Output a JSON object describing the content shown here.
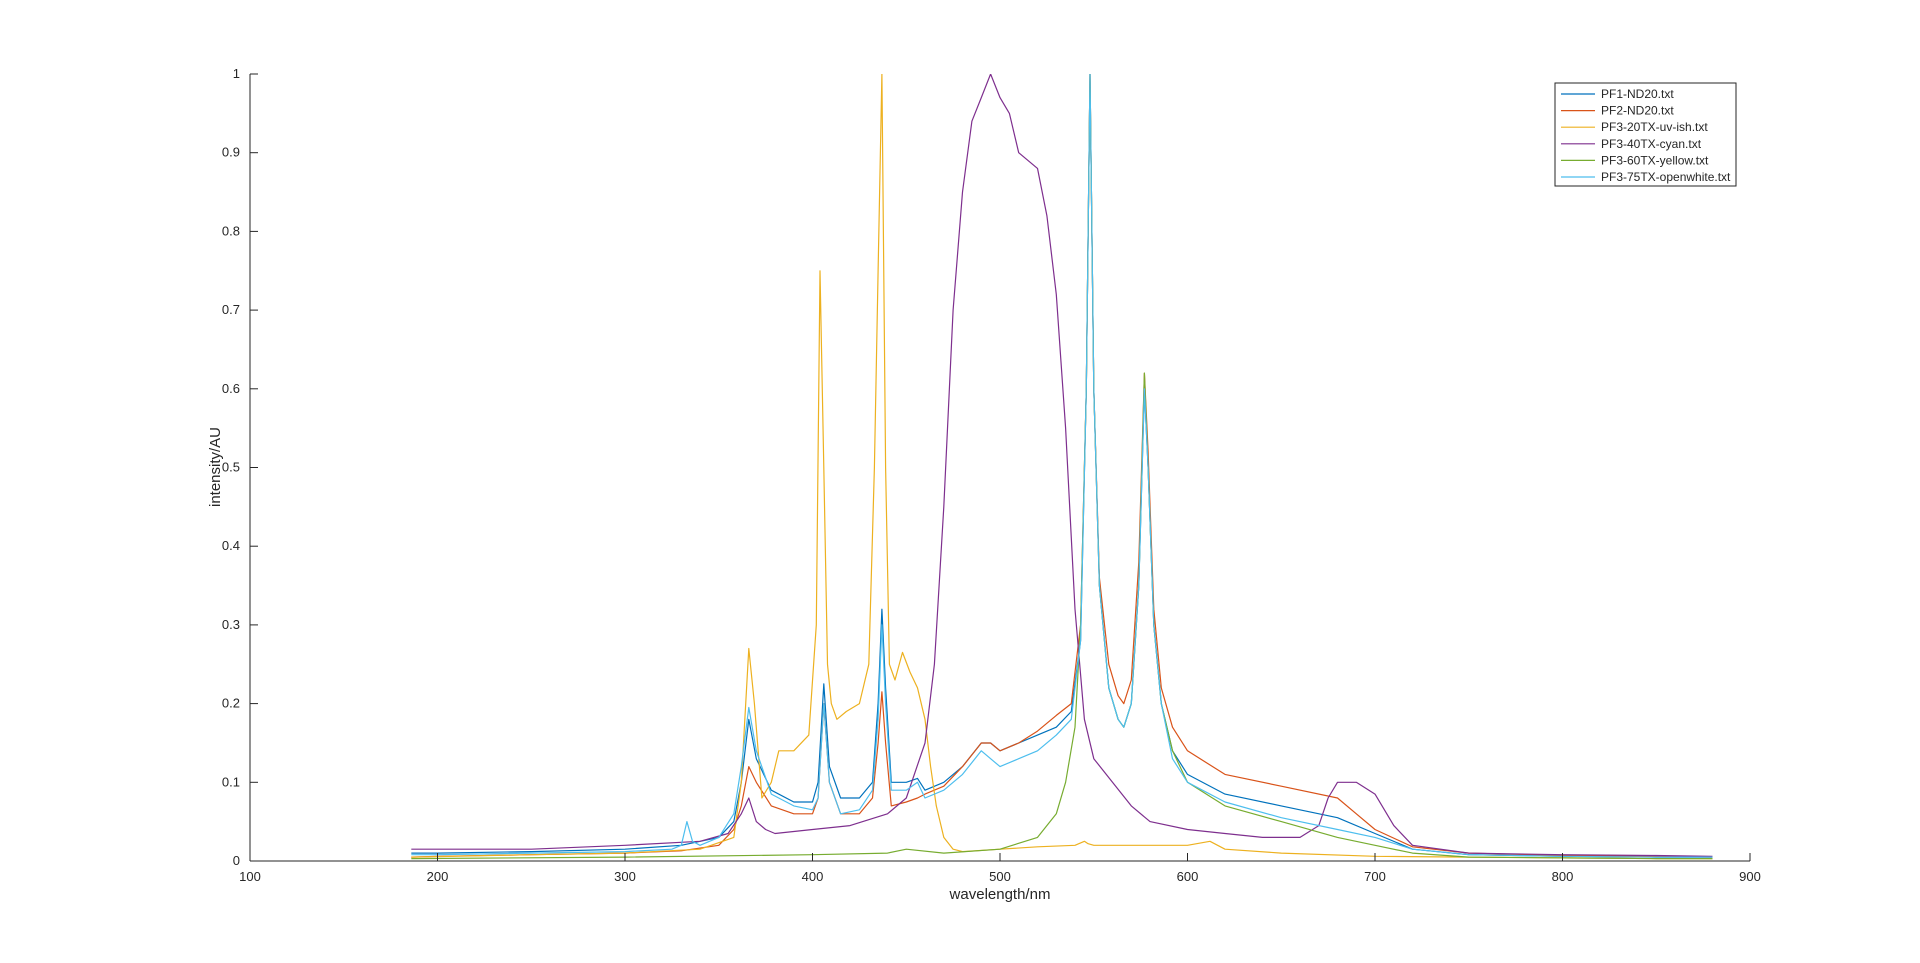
{
  "chart_data": {
    "type": "line",
    "xlabel": "wavelength/nm",
    "ylabel": "intensity/AU",
    "xlim": [
      100,
      900
    ],
    "ylim": [
      0,
      1
    ],
    "xticks": [
      "100",
      "200",
      "300",
      "400",
      "500",
      "600",
      "700",
      "800",
      "900"
    ],
    "yticks": [
      "0",
      "0.1",
      "0.2",
      "0.3",
      "0.4",
      "0.5",
      "0.6",
      "0.7",
      "0.8",
      "0.9",
      "1"
    ],
    "grid": false,
    "legend_position": "top-right",
    "series": [
      {
        "name": "PF1-ND20.txt",
        "color": "#0072BD",
        "x": [
          186,
          200,
          250,
          300,
          330,
          350,
          358,
          362,
          366,
          370,
          378,
          390,
          400,
          403,
          406,
          409,
          415,
          425,
          432,
          435,
          437,
          439,
          442,
          450,
          456,
          460,
          470,
          480,
          490,
          495,
          500,
          510,
          520,
          530,
          538,
          543,
          546,
          548,
          550,
          553,
          558,
          563,
          566,
          570,
          574,
          577,
          579,
          582,
          586,
          592,
          600,
          620,
          650,
          680,
          700,
          720,
          750,
          800,
          850,
          880
        ],
        "y": [
          0.01,
          0.01,
          0.012,
          0.015,
          0.02,
          0.03,
          0.05,
          0.1,
          0.18,
          0.13,
          0.09,
          0.075,
          0.075,
          0.1,
          0.225,
          0.12,
          0.08,
          0.08,
          0.1,
          0.2,
          0.32,
          0.22,
          0.1,
          0.1,
          0.105,
          0.09,
          0.1,
          0.12,
          0.15,
          0.15,
          0.14,
          0.15,
          0.16,
          0.17,
          0.19,
          0.28,
          0.6,
          1.0,
          0.6,
          0.35,
          0.22,
          0.18,
          0.17,
          0.2,
          0.35,
          0.6,
          0.5,
          0.3,
          0.2,
          0.14,
          0.11,
          0.085,
          0.07,
          0.055,
          0.035,
          0.015,
          0.008,
          0.006,
          0.005,
          0.005
        ]
      },
      {
        "name": "PF2-ND20.txt",
        "color": "#D95319",
        "x": [
          186,
          200,
          250,
          300,
          330,
          350,
          358,
          362,
          366,
          370,
          378,
          390,
          400,
          403,
          406,
          409,
          415,
          425,
          432,
          435,
          437,
          439,
          442,
          450,
          456,
          460,
          470,
          480,
          490,
          495,
          500,
          510,
          520,
          530,
          538,
          543,
          546,
          548,
          550,
          553,
          558,
          563,
          566,
          570,
          574,
          577,
          579,
          582,
          586,
          592,
          600,
          620,
          650,
          680,
          690,
          700,
          720,
          750,
          800,
          850,
          880
        ],
        "y": [
          0.005,
          0.006,
          0.008,
          0.01,
          0.013,
          0.02,
          0.04,
          0.07,
          0.12,
          0.1,
          0.07,
          0.06,
          0.06,
          0.08,
          0.2,
          0.1,
          0.06,
          0.06,
          0.08,
          0.15,
          0.215,
          0.15,
          0.07,
          0.075,
          0.08,
          0.085,
          0.095,
          0.12,
          0.15,
          0.15,
          0.14,
          0.15,
          0.165,
          0.185,
          0.2,
          0.3,
          0.6,
          1.0,
          0.6,
          0.36,
          0.25,
          0.21,
          0.2,
          0.23,
          0.38,
          0.62,
          0.52,
          0.32,
          0.22,
          0.17,
          0.14,
          0.11,
          0.095,
          0.08,
          0.06,
          0.04,
          0.018,
          0.01,
          0.007,
          0.006,
          0.005
        ]
      },
      {
        "name": "PF3-20TX-uv-ish.txt",
        "color": "#EDB120",
        "x": [
          186,
          250,
          300,
          340,
          358,
          362,
          366,
          369,
          373,
          378,
          382,
          390,
          398,
          402,
          404,
          406,
          408,
          410,
          413,
          418,
          425,
          430,
          433,
          435,
          437,
          439,
          441,
          444,
          448,
          452,
          456,
          460,
          463,
          466,
          470,
          475,
          480,
          500,
          520,
          540,
          545,
          547,
          550,
          560,
          580,
          600,
          612,
          620,
          650,
          700,
          750,
          800,
          850,
          880
        ],
        "y": [
          0.005,
          0.008,
          0.01,
          0.015,
          0.03,
          0.1,
          0.27,
          0.2,
          0.08,
          0.1,
          0.14,
          0.14,
          0.16,
          0.3,
          0.75,
          0.5,
          0.25,
          0.2,
          0.18,
          0.19,
          0.2,
          0.25,
          0.5,
          0.75,
          1.0,
          0.5,
          0.25,
          0.23,
          0.265,
          0.24,
          0.22,
          0.18,
          0.12,
          0.07,
          0.03,
          0.015,
          0.012,
          0.015,
          0.018,
          0.02,
          0.025,
          0.022,
          0.02,
          0.02,
          0.02,
          0.02,
          0.025,
          0.015,
          0.01,
          0.006,
          0.005,
          0.004,
          0.003,
          0.003
        ]
      },
      {
        "name": "PF3-40TX-cyan.txt",
        "color": "#7E2F8E",
        "x": [
          186,
          250,
          300,
          340,
          355,
          362,
          366,
          370,
          375,
          380,
          400,
          420,
          440,
          450,
          460,
          465,
          470,
          475,
          480,
          485,
          490,
          495,
          500,
          505,
          510,
          520,
          525,
          530,
          535,
          540,
          545,
          550,
          560,
          570,
          580,
          600,
          620,
          640,
          660,
          670,
          675,
          680,
          690,
          700,
          710,
          720,
          750,
          800,
          850,
          880
        ],
        "y": [
          0.015,
          0.015,
          0.02,
          0.025,
          0.035,
          0.06,
          0.08,
          0.05,
          0.04,
          0.035,
          0.04,
          0.045,
          0.06,
          0.08,
          0.15,
          0.25,
          0.45,
          0.7,
          0.85,
          0.94,
          0.97,
          1.0,
          0.97,
          0.95,
          0.9,
          0.88,
          0.82,
          0.72,
          0.55,
          0.32,
          0.18,
          0.13,
          0.1,
          0.07,
          0.05,
          0.04,
          0.035,
          0.03,
          0.03,
          0.045,
          0.08,
          0.1,
          0.1,
          0.085,
          0.045,
          0.02,
          0.01,
          0.008,
          0.007,
          0.006
        ]
      },
      {
        "name": "PF3-60TX-yellow.txt",
        "color": "#77AC30",
        "x": [
          186,
          300,
          400,
          440,
          450,
          470,
          500,
          520,
          530,
          535,
          540,
          543,
          546,
          548,
          550,
          553,
          558,
          563,
          566,
          570,
          574,
          577,
          579,
          582,
          586,
          592,
          600,
          620,
          650,
          680,
          700,
          720,
          750,
          800,
          850,
          880
        ],
        "y": [
          0.003,
          0.005,
          0.008,
          0.01,
          0.015,
          0.01,
          0.015,
          0.03,
          0.06,
          0.1,
          0.17,
          0.3,
          0.6,
          1.0,
          0.6,
          0.35,
          0.22,
          0.18,
          0.17,
          0.2,
          0.35,
          0.62,
          0.5,
          0.3,
          0.2,
          0.14,
          0.1,
          0.07,
          0.05,
          0.03,
          0.02,
          0.01,
          0.005,
          0.004,
          0.003,
          0.003
        ]
      },
      {
        "name": "PF3-75TX-openwhite.txt",
        "color": "#4DBEEE",
        "x": [
          186,
          200,
          250,
          300,
          325,
          330,
          333,
          336,
          340,
          350,
          358,
          362,
          366,
          370,
          378,
          390,
          400,
          403,
          406,
          409,
          415,
          425,
          432,
          435,
          437,
          439,
          442,
          450,
          456,
          460,
          470,
          480,
          490,
          495,
          500,
          510,
          520,
          530,
          538,
          543,
          546,
          548,
          550,
          553,
          558,
          563,
          566,
          570,
          574,
          577,
          579,
          582,
          586,
          592,
          600,
          620,
          650,
          680,
          700,
          720,
          750,
          800,
          850,
          880
        ],
        "y": [
          0.008,
          0.008,
          0.01,
          0.012,
          0.015,
          0.02,
          0.05,
          0.025,
          0.02,
          0.03,
          0.06,
          0.12,
          0.195,
          0.14,
          0.085,
          0.07,
          0.065,
          0.08,
          0.2,
          0.1,
          0.06,
          0.065,
          0.09,
          0.18,
          0.3,
          0.2,
          0.09,
          0.09,
          0.1,
          0.08,
          0.09,
          0.11,
          0.14,
          0.13,
          0.12,
          0.13,
          0.14,
          0.16,
          0.18,
          0.28,
          0.6,
          1.0,
          0.6,
          0.35,
          0.22,
          0.18,
          0.17,
          0.2,
          0.35,
          0.6,
          0.5,
          0.3,
          0.2,
          0.13,
          0.1,
          0.075,
          0.055,
          0.04,
          0.03,
          0.015,
          0.008,
          0.006,
          0.005,
          0.005
        ]
      }
    ]
  }
}
